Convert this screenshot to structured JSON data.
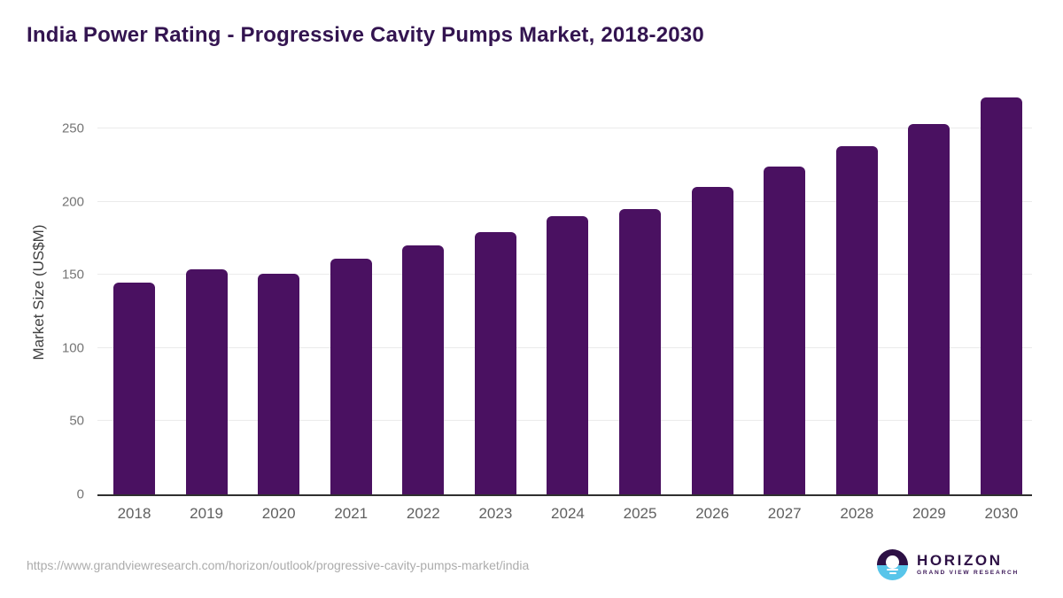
{
  "title": "India Power Rating - Progressive Cavity Pumps Market, 2018-2030",
  "chart_data": {
    "type": "bar",
    "title": "India Power Rating - Progressive Cavity Pumps Market, 2018-2030",
    "categories": [
      "2018",
      "2019",
      "2020",
      "2021",
      "2022",
      "2023",
      "2024",
      "2025",
      "2026",
      "2027",
      "2028",
      "2029",
      "2030"
    ],
    "values": [
      145,
      154,
      151,
      161,
      170,
      179,
      190,
      195,
      210,
      224,
      238,
      253,
      271
    ],
    "xlabel": "",
    "ylabel": "Market Size (US$M)",
    "yticks": [
      0,
      50,
      100,
      150,
      200,
      250
    ],
    "ylim": [
      0,
      272.5
    ],
    "grid": "horizontal-light",
    "legend": "none",
    "bar_color": "#4a1161"
  },
  "footer": {
    "source_url": "https://www.grandviewresearch.com/horizon/outlook/progressive-cavity-pumps-market/india",
    "logo": {
      "brand": "HORIZON",
      "tagline": "GRAND VIEW RESEARCH"
    }
  },
  "colors": {
    "title_text": "#331450",
    "bar": "#4a1161",
    "gridline": "#ebebeb",
    "axis_line": "#2f2f2f",
    "ytick_text": "#757575",
    "xlabel_text": "#606060",
    "url_text": "#acacac",
    "logo_purple": "#2d1045",
    "logo_blue": "#58c5ea"
  }
}
